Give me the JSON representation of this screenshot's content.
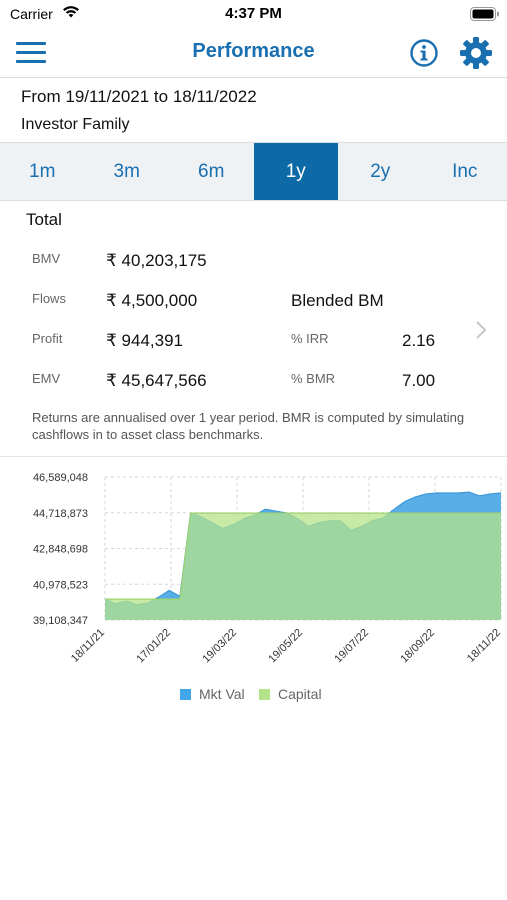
{
  "status": {
    "carrier": "Carrier",
    "time": "4:37 PM"
  },
  "nav": {
    "title": "Performance"
  },
  "header": {
    "date_range": "From 19/11/2021 to 18/11/2022",
    "investor": "Investor Family"
  },
  "tabs": [
    {
      "label": "1m",
      "active": false
    },
    {
      "label": "3m",
      "active": false
    },
    {
      "label": "6m",
      "active": false
    },
    {
      "label": "1y",
      "active": true
    },
    {
      "label": "2y",
      "active": false
    },
    {
      "label": "Inc",
      "active": false
    }
  ],
  "summary": {
    "title": "Total",
    "bmv_label": "BMV",
    "bmv_value": "₹ 40,203,175",
    "flows_label": "Flows",
    "flows_value": "₹ 4,500,000",
    "profit_label": "Profit",
    "profit_value": "₹ 944,391",
    "emv_label": "EMV",
    "emv_value": "₹ 45,647,566",
    "blended_label": "Blended BM",
    "irr_label": "% IRR",
    "irr_value": "2.16",
    "bmr_label": "% BMR",
    "bmr_value": "7.00",
    "note": "Returns are annualised over 1 year period. BMR is computed by simulating cashflows in to asset class benchmarks."
  },
  "colors": {
    "accent": "#1a6fb0",
    "active_tab": "#0d6aa6",
    "mkt_val": "#5aaee8",
    "capital": "#b5e38a"
  },
  "chart_data": {
    "type": "area",
    "y_ticks": [
      "46,589,048",
      "44,718,873",
      "42,848,698",
      "40,978,523",
      "39,108,347"
    ],
    "ylim": [
      39108347,
      46589048
    ],
    "x_ticks": [
      "18/11/21",
      "17/01/22",
      "19/03/22",
      "19/05/22",
      "19/07/22",
      "18/09/22",
      "18/11/22"
    ],
    "grid": true,
    "legend_position": "bottom",
    "series": [
      {
        "name": "Mkt Val",
        "values": [
          40200000,
          39950000,
          40100000,
          39900000,
          40000000,
          40300000,
          40650000,
          40350000,
          44700000,
          44500000,
          44200000,
          43900000,
          44100000,
          44400000,
          44600000,
          44900000,
          44800000,
          44700000,
          44400000,
          44000000,
          44200000,
          44300000,
          44300000,
          43800000,
          44000000,
          44300000,
          44450000,
          44900000,
          45300000,
          45550000,
          45700000,
          45750000,
          45750000,
          45750000,
          45800000,
          45600000,
          45700000,
          45750000
        ]
      },
      {
        "name": "Capital",
        "values": [
          40200000,
          40200000,
          40200000,
          40200000,
          40200000,
          40200000,
          40200000,
          40200000,
          44700000,
          44700000,
          44700000,
          44700000,
          44700000,
          44700000,
          44700000,
          44700000,
          44700000,
          44700000,
          44700000,
          44700000,
          44700000,
          44700000,
          44700000,
          44700000,
          44700000,
          44700000,
          44700000,
          44700000,
          44700000,
          44700000,
          44700000,
          44700000,
          44700000,
          44700000,
          44700000,
          44700000,
          44700000,
          44700000
        ]
      }
    ]
  }
}
